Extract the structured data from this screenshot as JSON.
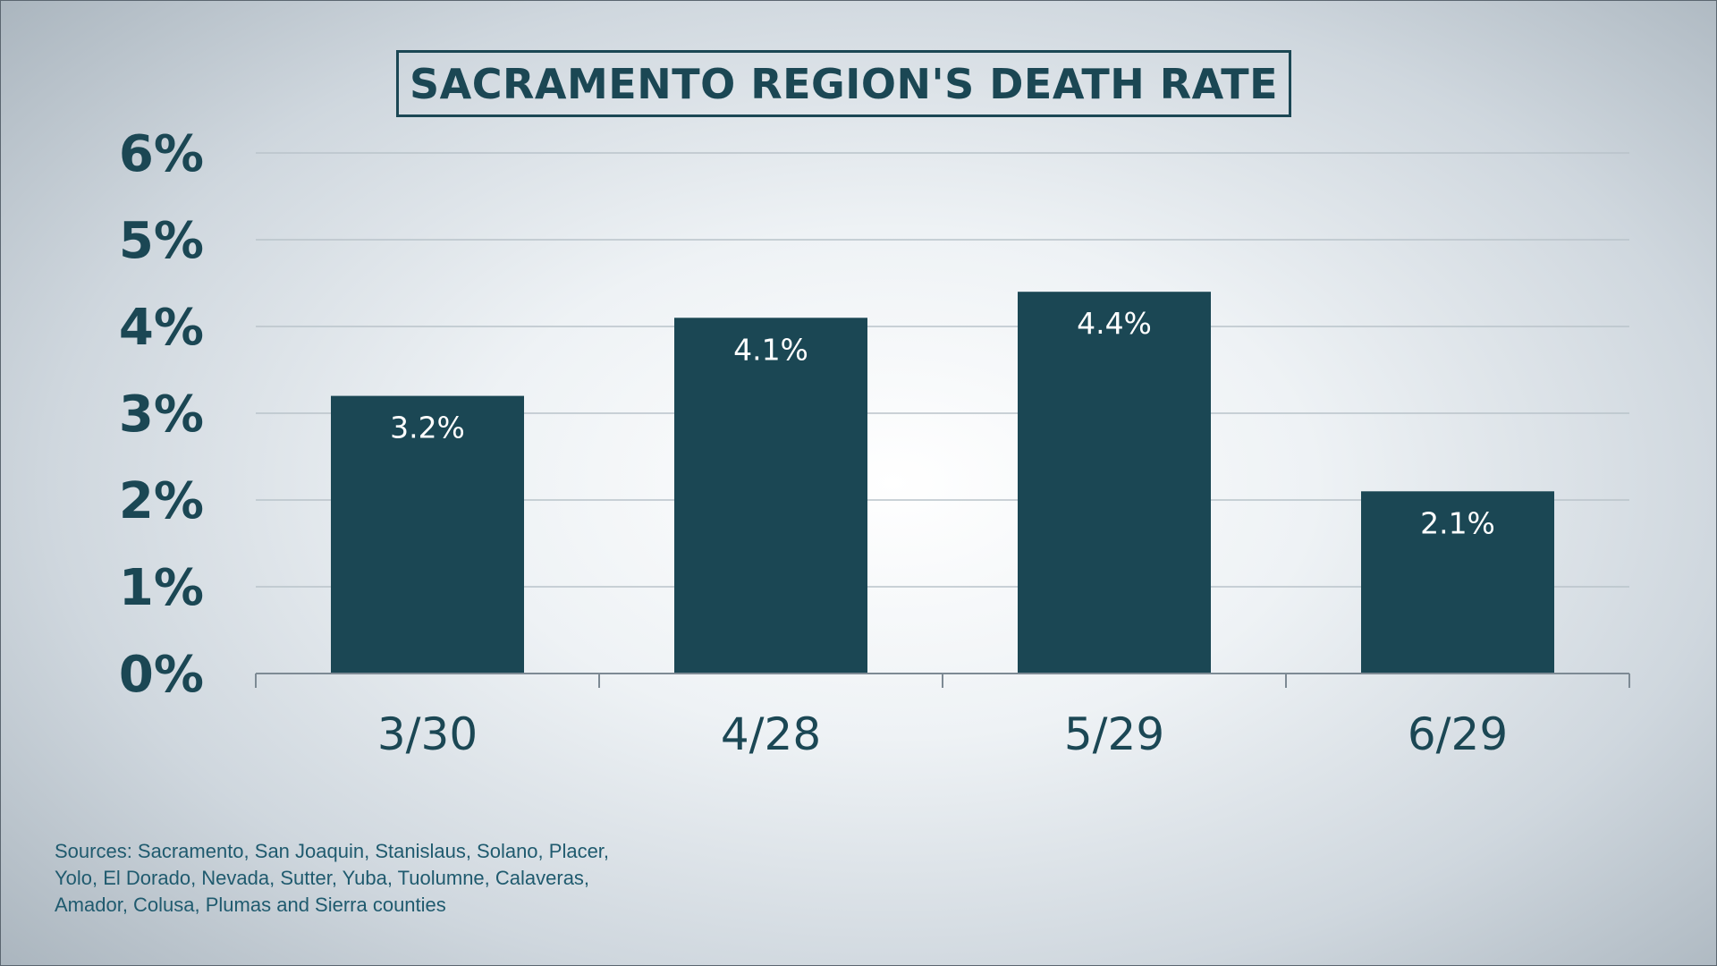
{
  "chart_data": {
    "type": "bar",
    "title": "SACRAMENTO REGION'S DEATH RATE",
    "categories": [
      "3/30",
      "4/28",
      "5/29",
      "6/29"
    ],
    "values": [
      3.2,
      4.1,
      4.4,
      2.1
    ],
    "value_labels": [
      "3.2%",
      "4.1%",
      "4.4%",
      "2.1%"
    ],
    "y_ticks": [
      0,
      1,
      2,
      3,
      4,
      5,
      6
    ],
    "y_tick_labels": [
      "0%",
      "1%",
      "2%",
      "3%",
      "4%",
      "5%",
      "6%"
    ],
    "ylim": [
      0,
      6
    ],
    "xlabel": "",
    "ylabel": "",
    "grid": true,
    "legend": "none",
    "bar_color": "#1b4754",
    "gridline_color": "#b9c3ca",
    "text_color": "#1b4754"
  },
  "sources": {
    "lines": [
      "Sources: Sacramento, San Joaquin, Stanislaus, Solano, Placer,",
      "Yolo, El Dorado, Nevada, Sutter, Yuba, Tuolumne, Calaveras,",
      "Amador, Colusa, Plumas and Sierra counties"
    ]
  }
}
